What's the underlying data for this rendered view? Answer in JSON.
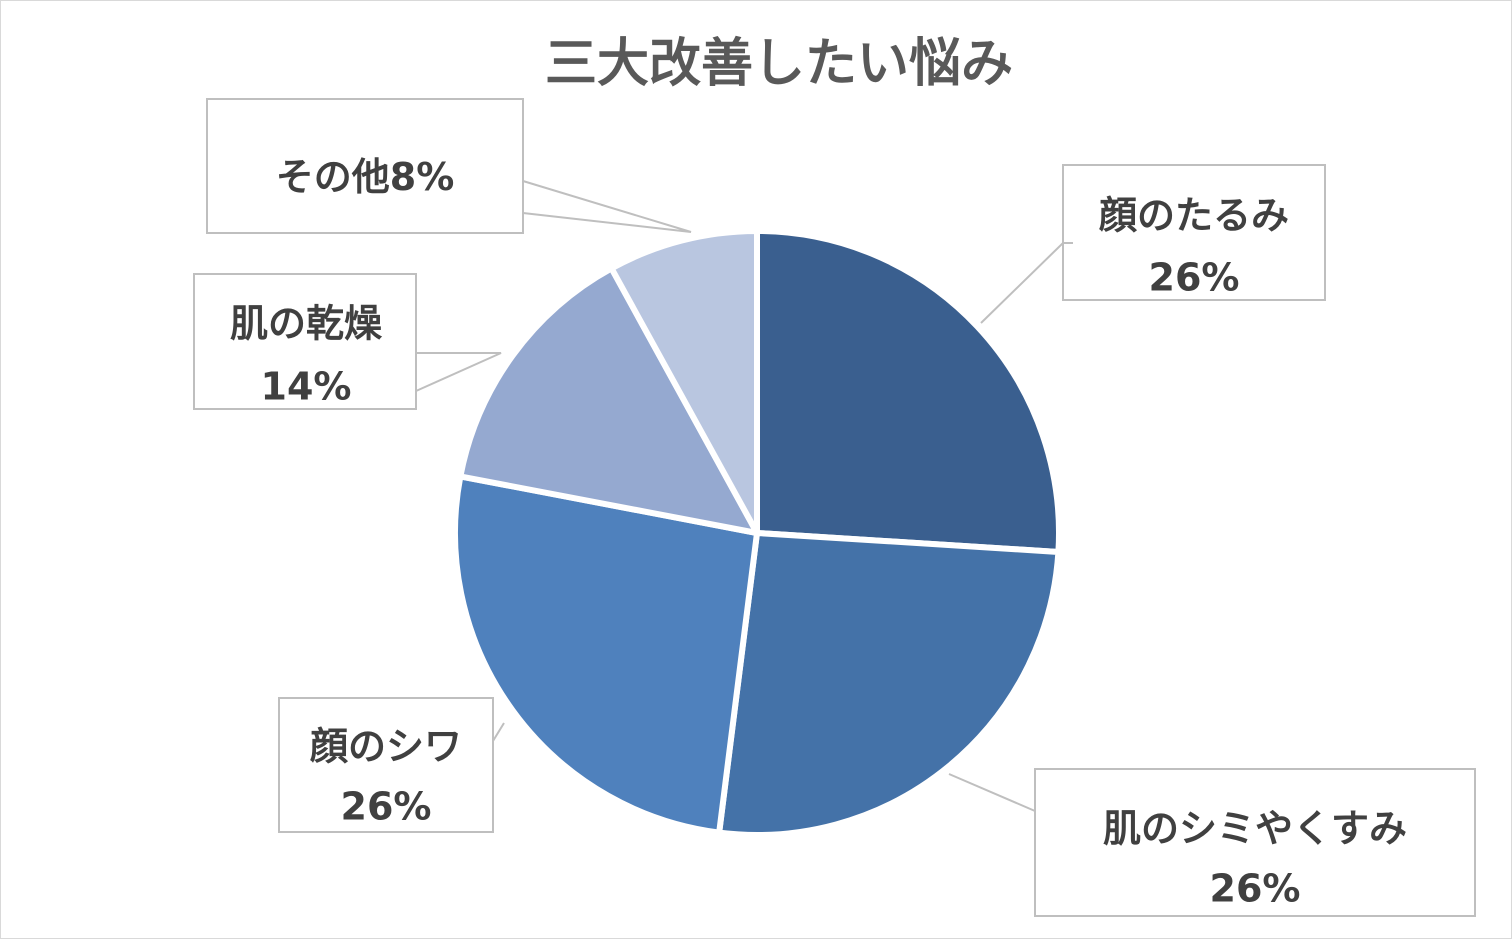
{
  "chart_data": {
    "type": "pie",
    "title": "三大改善したい悩み",
    "categories": [
      "顔のたるみ",
      "肌のシミやくすみ",
      "顔のシワ",
      "肌の乾燥",
      "その他"
    ],
    "values": [
      26,
      26,
      26,
      14,
      8
    ],
    "unit": "%",
    "legend": "none",
    "data_labels": [
      {
        "category": "顔のたるみ",
        "percent": "26%"
      },
      {
        "category": "肌のシミやくすみ",
        "percent": "26%"
      },
      {
        "category": "顔のシワ",
        "percent": "26%"
      },
      {
        "category": "肌の乾燥",
        "percent": "14%"
      },
      {
        "category": "その他",
        "percent": "8%"
      }
    ],
    "colors": [
      "#3a5f8f",
      "#4472a8",
      "#4f81bd",
      "#95a9d0",
      "#b9c6e0"
    ]
  }
}
